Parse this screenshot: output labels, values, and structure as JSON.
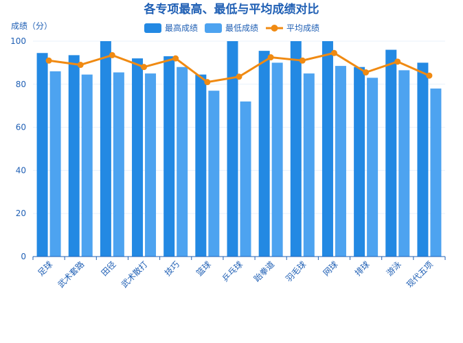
{
  "chart_data": {
    "type": "bar",
    "title": "各专项最高、最低与平均成绩对比",
    "ylabel": "成绩（分）",
    "xlabel": "",
    "ylim": [
      0,
      100
    ],
    "yticks": [
      0,
      20,
      40,
      60,
      80,
      100
    ],
    "categories": [
      "足球",
      "武术套路",
      "田径",
      "武术散打",
      "技巧",
      "篮球",
      "乒乓球",
      "跆拳道",
      "羽毛球",
      "网球",
      "排球",
      "游泳",
      "现代五项"
    ],
    "series": [
      {
        "name": "最高成绩",
        "kind": "bar",
        "color": "#2389e3",
        "values": [
          94.5,
          93.5,
          100,
          92,
          93,
          84.5,
          100,
          95.5,
          100,
          100,
          88,
          96,
          90
        ]
      },
      {
        "name": "最低成绩",
        "kind": "bar",
        "color": "#4da3f0",
        "values": [
          86,
          84.5,
          85.5,
          85,
          88,
          77,
          72,
          90,
          85,
          88.5,
          83,
          86.5,
          78
        ]
      },
      {
        "name": "平均成绩",
        "kind": "line",
        "color": "#f08a12",
        "values": [
          91,
          89,
          93.5,
          88,
          92,
          81,
          83.5,
          92.5,
          91,
          94.5,
          85.5,
          90.5,
          84
        ]
      }
    ],
    "legend": [
      "最高成绩",
      "最低成绩",
      "平均成绩"
    ],
    "legend_position": "top-center",
    "grid": true
  }
}
